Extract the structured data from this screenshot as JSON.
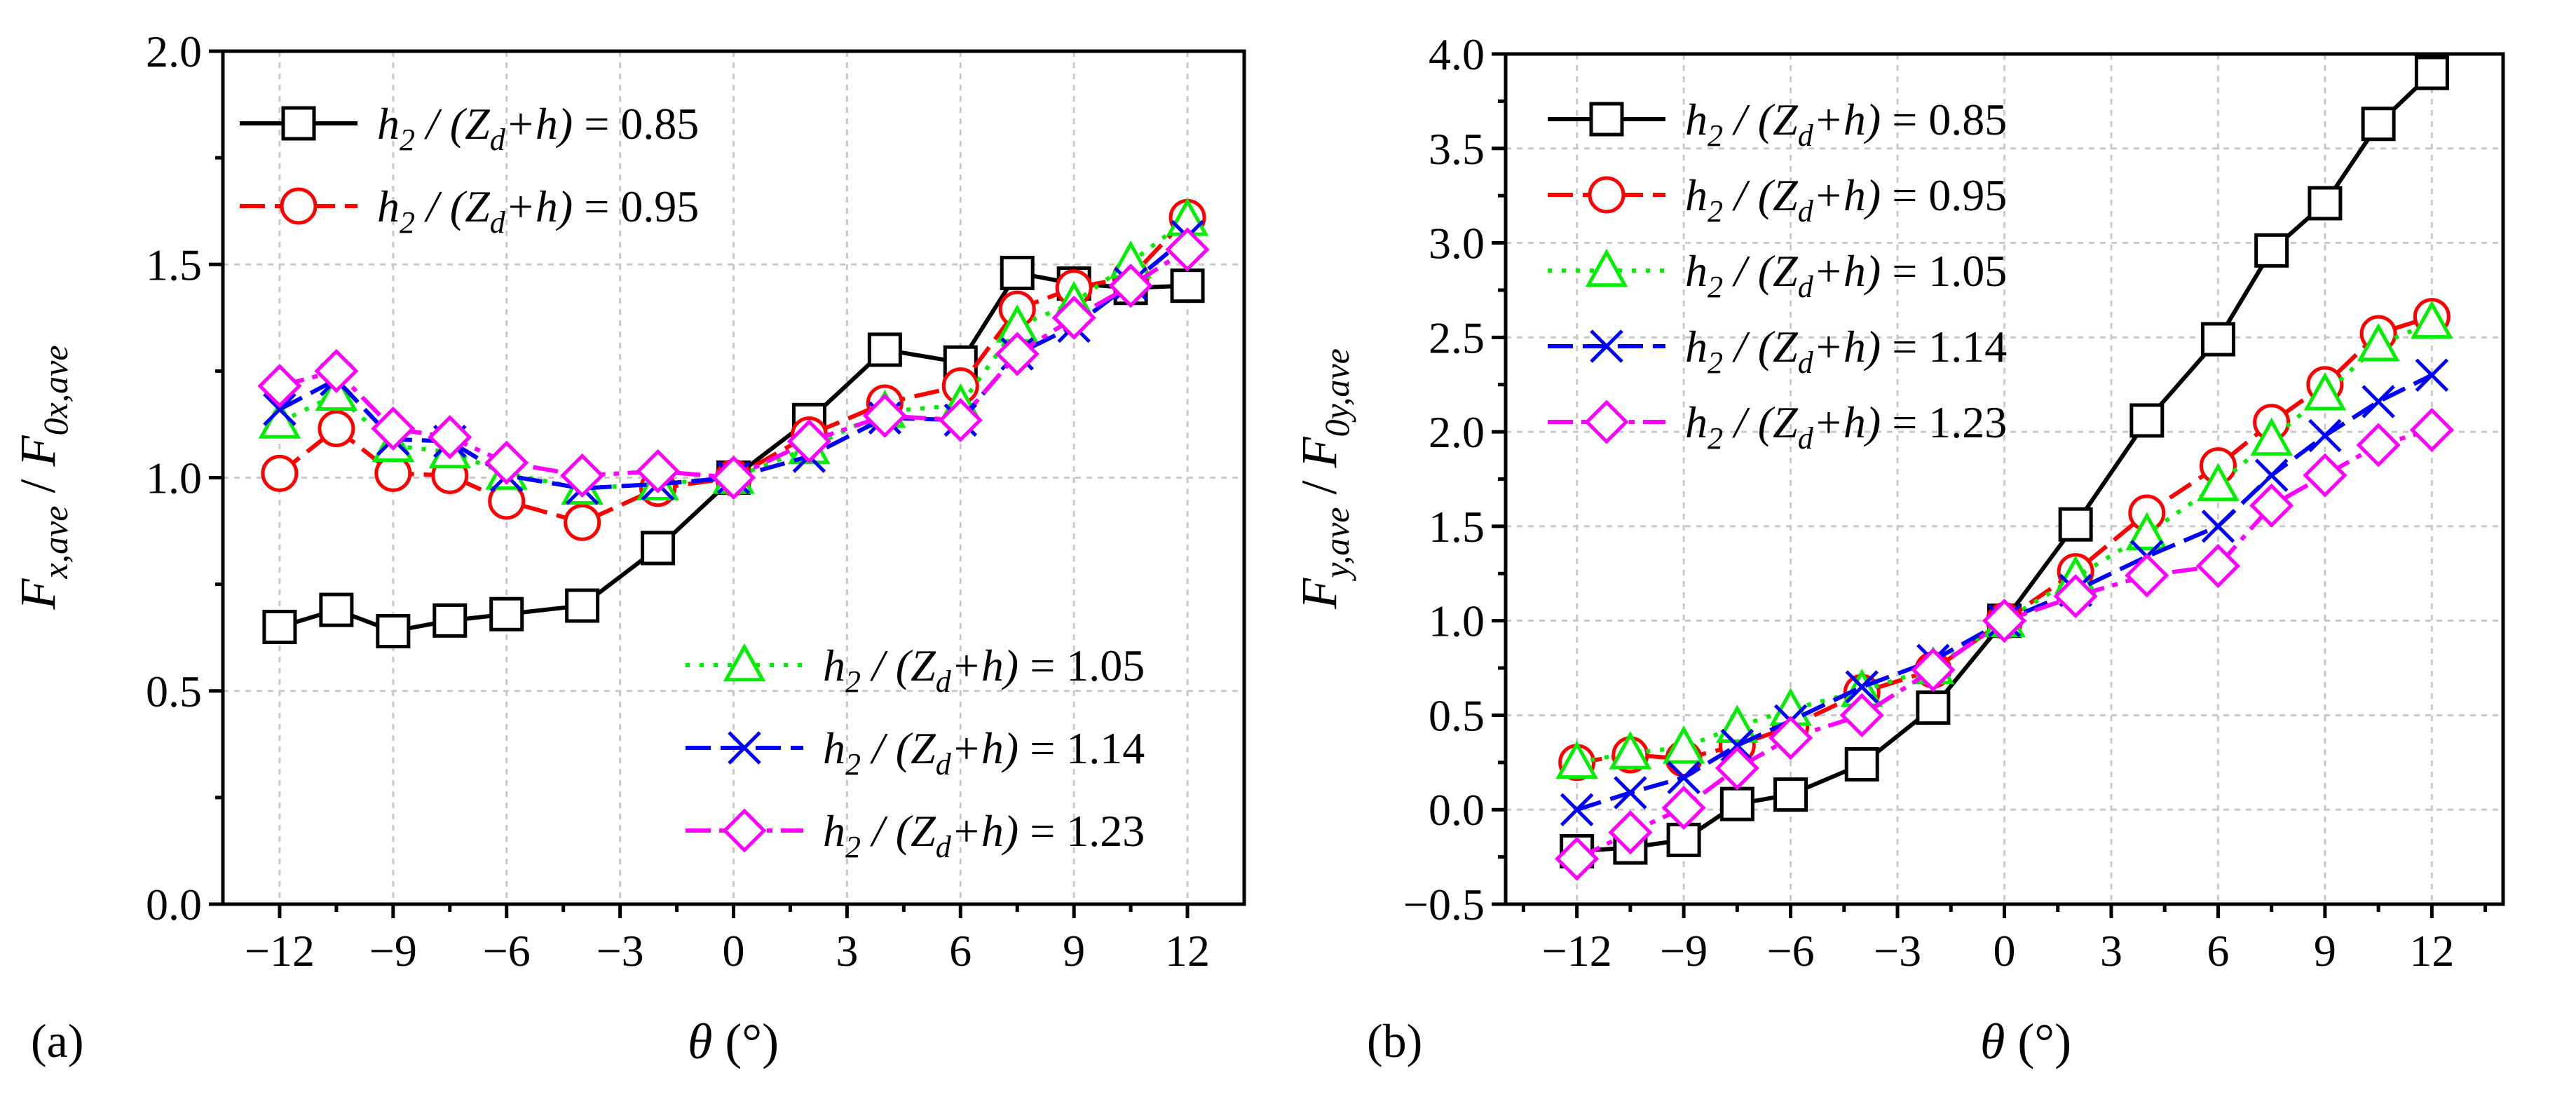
{
  "chart_data": [
    {
      "panel_label": "(a)",
      "type": "line",
      "xlabel_sym": "θ",
      "xlabel_unit": " (°)",
      "ylabel_main": "F",
      "ylabel_num_sub": "x,ave",
      "ylabel_slash": " / ",
      "ylabel_den_sub": "0x,ave",
      "xlim": [
        -13.5,
        13.5
      ],
      "ylim": [
        0.0,
        2.0
      ],
      "xticks": [
        -12,
        -9,
        -6,
        -3,
        0,
        3,
        6,
        9,
        12
      ],
      "xtick_labels": [
        "−12",
        "−9",
        "−6",
        "−3",
        "0",
        "3",
        "6",
        "9",
        "12"
      ],
      "yticks": [
        0.0,
        0.5,
        1.0,
        1.5,
        2.0
      ],
      "ytick_labels": [
        "0.0",
        "0.5",
        "1.0",
        "1.5",
        "2.0"
      ],
      "grid": true,
      "legend_placement": [
        "top-left",
        "bottom-right"
      ],
      "series": [
        {
          "name": "h2 / (Zd+h) = 0.85",
          "ratio": "0.85",
          "color": "#000000",
          "marker": "square",
          "dash": "solid",
          "x": [
            -12,
            -10.5,
            -9,
            -7.5,
            -6,
            -4,
            -2,
            0,
            2,
            4,
            6,
            7.5,
            9,
            10.5,
            12
          ],
          "y": [
            0.65,
            0.69,
            0.64,
            0.665,
            0.68,
            0.7,
            0.835,
            1.0,
            1.135,
            1.3,
            1.27,
            1.48,
            1.455,
            1.445,
            1.45
          ]
        },
        {
          "name": "h2 / (Zd+h) = 0.95",
          "ratio": "0.95",
          "color": "#ff0000",
          "marker": "circle",
          "dash": "dashed",
          "x": [
            -12,
            -10.5,
            -9,
            -7.5,
            -6,
            -4,
            -2,
            0,
            2,
            4,
            6,
            7.5,
            9,
            10.5,
            12
          ],
          "y": [
            1.01,
            1.115,
            1.01,
            1.005,
            0.945,
            0.895,
            0.975,
            1.0,
            1.1,
            1.175,
            1.215,
            1.395,
            1.445,
            1.47,
            1.61
          ]
        },
        {
          "name": "h2 / (Zd+h) = 1.05",
          "ratio": "1.05",
          "color": "#00ee00",
          "marker": "triangle",
          "dash": "dotted",
          "x": [
            -12,
            -10.5,
            -9,
            -7.5,
            -6,
            -4,
            -2,
            0,
            2,
            4,
            6,
            7.5,
            9,
            10.5,
            12
          ],
          "y": [
            1.13,
            1.195,
            1.075,
            1.06,
            1.01,
            0.975,
            0.985,
            1.0,
            1.07,
            1.155,
            1.17,
            1.355,
            1.41,
            1.505,
            1.605
          ]
        },
        {
          "name": "h2 / (Zd+h) = 1.14",
          "ratio": "1.14",
          "color": "#0000ff",
          "marker": "x",
          "dash": "dashed",
          "x": [
            -12,
            -10.5,
            -9,
            -7.5,
            -6,
            -4,
            -2,
            0,
            2,
            4,
            6,
            7.5,
            9,
            10.5,
            12
          ],
          "y": [
            1.16,
            1.23,
            1.09,
            1.085,
            1.005,
            0.975,
            0.985,
            1.0,
            1.05,
            1.14,
            1.135,
            1.29,
            1.355,
            1.455,
            1.565
          ]
        },
        {
          "name": "h2 / (Zd+h) = 1.23",
          "ratio": "1.23",
          "color": "#ff00ff",
          "marker": "diamond",
          "dash": "dashdot",
          "x": [
            -12,
            -10.5,
            -9,
            -7.5,
            -6,
            -4,
            -2,
            0,
            2,
            4,
            6,
            7.5,
            9,
            10.5,
            12
          ],
          "y": [
            1.215,
            1.25,
            1.115,
            1.095,
            1.035,
            1.005,
            1.015,
            1.0,
            1.085,
            1.145,
            1.135,
            1.29,
            1.375,
            1.45,
            1.535
          ]
        }
      ]
    },
    {
      "panel_label": "(b)",
      "type": "line",
      "xlabel_sym": "θ",
      "xlabel_unit": " (°)",
      "ylabel_main": "F",
      "ylabel_num_sub": "y,ave",
      "ylabel_slash": " / ",
      "ylabel_den_sub": "0y,ave",
      "xlim": [
        -14,
        14
      ],
      "ylim": [
        -0.5,
        4.0
      ],
      "xticks": [
        -12,
        -9,
        -6,
        -3,
        0,
        3,
        6,
        9,
        12
      ],
      "xtick_labels": [
        "−12",
        "−9",
        "−6",
        "−3",
        "0",
        "3",
        "6",
        "9",
        "12"
      ],
      "yticks": [
        -0.5,
        0.0,
        0.5,
        1.0,
        1.5,
        2.0,
        2.5,
        3.0,
        3.5,
        4.0
      ],
      "ytick_labels": [
        "−0.5",
        "0.0",
        "0.5",
        "1.0",
        "1.5",
        "2.0",
        "2.5",
        "3.0",
        "3.5",
        "4.0"
      ],
      "grid": true,
      "legend_placement": [
        "top-left"
      ],
      "series": [
        {
          "name": "h2 / (Zd+h) = 0.85",
          "ratio": "0.85",
          "color": "#000000",
          "marker": "square",
          "dash": "solid",
          "x": [
            -12,
            -10.5,
            -9,
            -7.5,
            -6,
            -4,
            -2,
            0,
            2,
            4,
            6,
            7.5,
            9,
            10.5,
            12
          ],
          "y": [
            -0.22,
            -0.2,
            -0.16,
            0.03,
            0.08,
            0.24,
            0.54,
            1.0,
            1.51,
            2.06,
            2.49,
            2.96,
            3.21,
            3.63,
            3.9
          ]
        },
        {
          "name": "h2 / (Zd+h) = 0.95",
          "ratio": "0.95",
          "color": "#ff0000",
          "marker": "circle",
          "dash": "dashed",
          "x": [
            -12,
            -10.5,
            -9,
            -7.5,
            -6,
            -4,
            -2,
            0,
            2,
            4,
            6,
            7.5,
            9,
            10.5,
            12
          ],
          "y": [
            0.25,
            0.29,
            0.27,
            0.34,
            0.44,
            0.62,
            0.74,
            1.0,
            1.26,
            1.57,
            1.82,
            2.05,
            2.25,
            2.52,
            2.61
          ]
        },
        {
          "name": "h2 / (Zd+h) = 1.05",
          "ratio": "1.05",
          "color": "#00ee00",
          "marker": "triangle",
          "dash": "dotted",
          "x": [
            -12,
            -10.5,
            -9,
            -7.5,
            -6,
            -4,
            -2,
            0,
            2,
            4,
            6,
            7.5,
            9,
            10.5,
            12
          ],
          "y": [
            0.25,
            0.3,
            0.33,
            0.44,
            0.53,
            0.63,
            0.75,
            1.0,
            1.23,
            1.46,
            1.72,
            1.96,
            2.2,
            2.46,
            2.58
          ]
        },
        {
          "name": "h2 / (Zd+h) = 1.14",
          "ratio": "1.14",
          "color": "#0000ff",
          "marker": "x",
          "dash": "dashed",
          "x": [
            -12,
            -10.5,
            -9,
            -7.5,
            -6,
            -4,
            -2,
            0,
            2,
            4,
            6,
            7.5,
            9,
            10.5,
            12
          ],
          "y": [
            0.0,
            0.09,
            0.17,
            0.34,
            0.47,
            0.65,
            0.79,
            1.0,
            1.16,
            1.34,
            1.5,
            1.77,
            1.98,
            2.16,
            2.3
          ]
        },
        {
          "name": "h2 / (Zd+h) = 1.23",
          "ratio": "1.23",
          "color": "#ff00ff",
          "marker": "diamond",
          "dash": "dashdot",
          "x": [
            -12,
            -10.5,
            -9,
            -7.5,
            -6,
            -4,
            -2,
            0,
            2,
            4,
            6,
            7.5,
            9,
            10.5,
            12
          ],
          "y": [
            -0.26,
            -0.12,
            0.01,
            0.22,
            0.38,
            0.5,
            0.74,
            1.0,
            1.13,
            1.24,
            1.29,
            1.61,
            1.77,
            1.93,
            2.01
          ]
        }
      ]
    }
  ],
  "legend_text": {
    "h_main": "h",
    "h_sub": "2",
    "slash_open": " / (",
    "z_main": "Z",
    "z_sub": "d",
    "plus_h": "+h)",
    "equals": " = "
  }
}
